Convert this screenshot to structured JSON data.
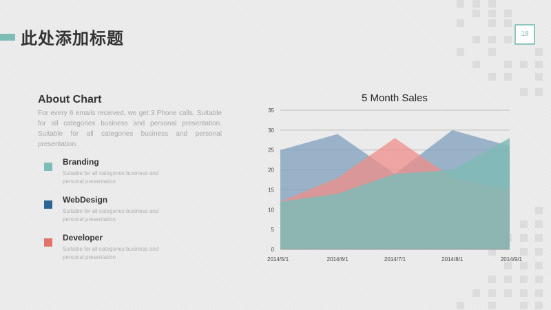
{
  "slide": {
    "title": "此处添加标题",
    "page_number": "18",
    "accent_color": "#7dbdb6"
  },
  "about": {
    "title": "About Chart",
    "text": "For every 6 emails received, we get 3 Phone calls. Suitable for all categories business and personal presentation. Suitable for all categories business and personal presentation."
  },
  "legend": [
    {
      "label": "Branding",
      "desc": "Suitable for all categories business and personal presentation",
      "color": "#7dbdb6"
    },
    {
      "label": "WebDesign",
      "desc": "Suitable for all categories business and personal presentation",
      "color": "#2a6494"
    },
    {
      "label": "Developer",
      "desc": "Suitable for all categories business and personal presentation",
      "color": "#e0736a"
    }
  ],
  "chart_data": {
    "type": "area",
    "title": "5 Month Sales",
    "categories": [
      "2014/5/1",
      "2014/6/1",
      "2014/7/1",
      "2014/8/1",
      "2014/9/1"
    ],
    "ylim": [
      0,
      35
    ],
    "yticks": [
      0,
      5,
      10,
      15,
      20,
      25,
      30,
      35
    ],
    "grid": true,
    "series": [
      {
        "values": [
          25,
          29,
          19,
          30,
          26
        ],
        "color": "#7f9fbc"
      },
      {
        "values": [
          12,
          18,
          28,
          18,
          15
        ],
        "color": "#ef8e88"
      },
      {
        "values": [
          12,
          14,
          19,
          20,
          28
        ],
        "color": "#7fbab5"
      }
    ]
  }
}
